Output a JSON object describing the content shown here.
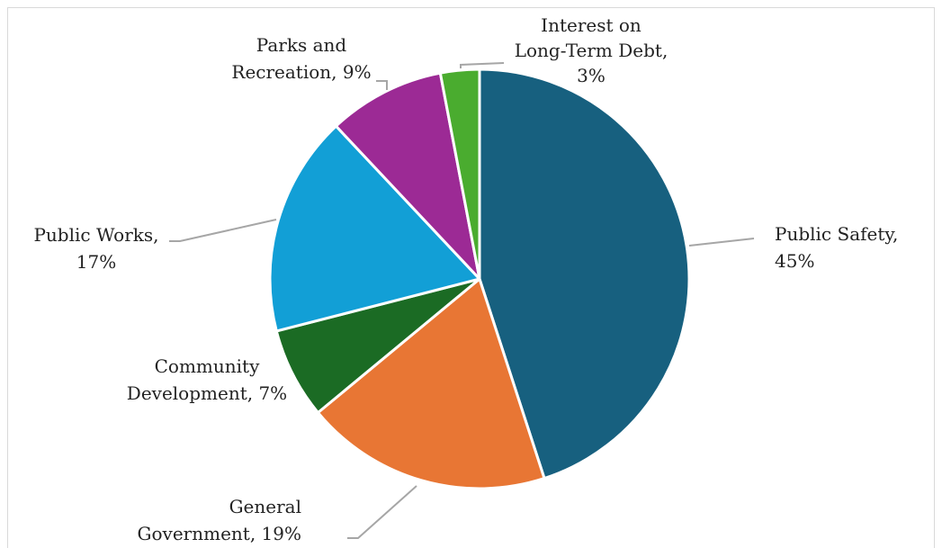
{
  "chart_data": {
    "type": "pie",
    "title": "",
    "slices": [
      {
        "name": "Public Safety",
        "value": 45,
        "label_lines": [
          "Public Safety,",
          "45%"
        ],
        "color": "#17607f"
      },
      {
        "name": "General Government",
        "value": 19,
        "label_lines": [
          "General",
          "Government, 19%"
        ],
        "color": "#e87634"
      },
      {
        "name": "Community Development",
        "value": 7,
        "label_lines": [
          "Community",
          "Development, 7%"
        ],
        "color": "#1b6b24"
      },
      {
        "name": "Public Works",
        "value": 17,
        "label_lines": [
          "Public Works,",
          "17%"
        ],
        "color": "#129fd6"
      },
      {
        "name": "Parks and Recreation",
        "value": 9,
        "label_lines": [
          "Parks and",
          "Recreation, 9%"
        ],
        "color": "#9c2a95"
      },
      {
        "name": "Interest on Long-Term Debt",
        "value": 3,
        "label_lines": [
          "Interest on",
          "Long-Term Debt,",
          "3%"
        ],
        "color": "#4aac2f"
      }
    ],
    "legend": "none",
    "data_labels": "outside with leader lines"
  }
}
